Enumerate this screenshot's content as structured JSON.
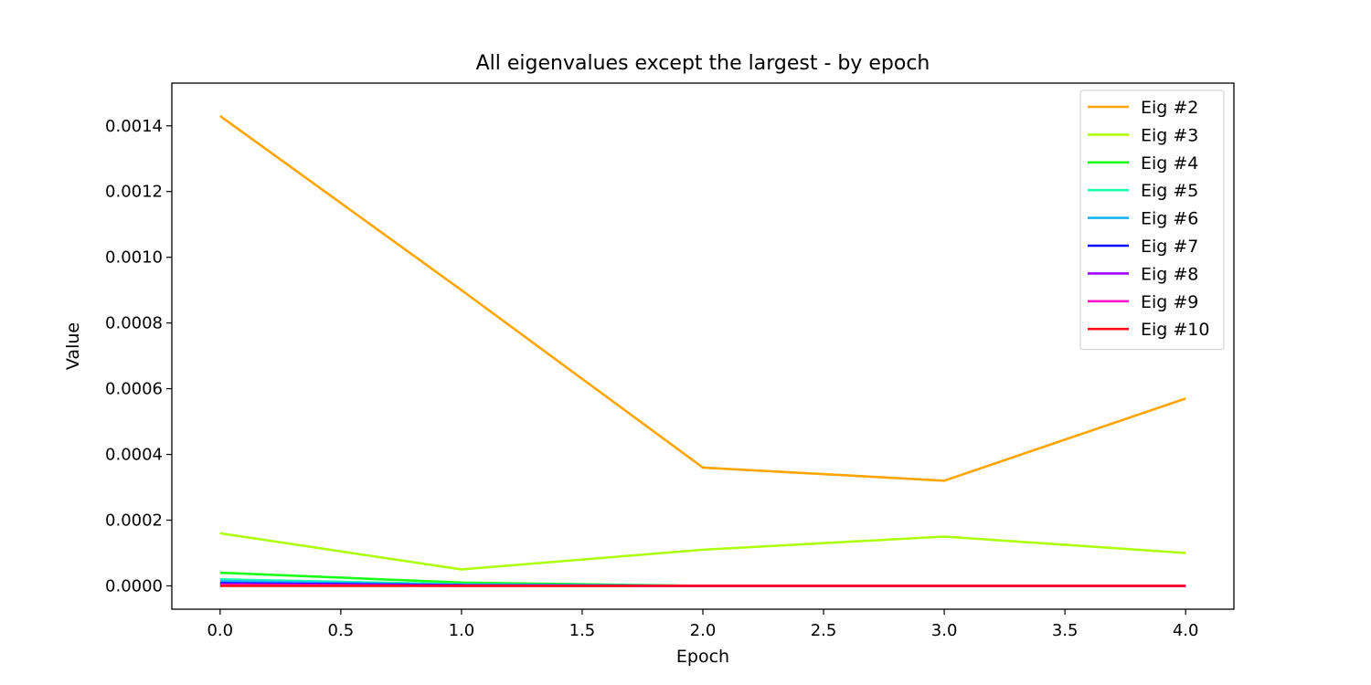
{
  "chart_data": {
    "type": "line",
    "title": "All eigenvalues except the largest - by epoch",
    "xlabel": "Epoch",
    "ylabel": "Value",
    "xlim": [
      -0.2,
      4.2
    ],
    "ylim": [
      -7.1e-05,
      0.00153
    ],
    "x_ticks": [
      "0.0",
      "0.5",
      "1.0",
      "1.5",
      "2.0",
      "2.5",
      "3.0",
      "3.5",
      "4.0"
    ],
    "x_tick_values": [
      0,
      0.5,
      1,
      1.5,
      2,
      2.5,
      3,
      3.5,
      4
    ],
    "y_ticks": [
      "0.0000",
      "0.0002",
      "0.0004",
      "0.0006",
      "0.0008",
      "0.0010",
      "0.0012",
      "0.0014"
    ],
    "y_tick_values": [
      0,
      0.0002,
      0.0004,
      0.0006,
      0.0008,
      0.001,
      0.0012,
      0.0014
    ],
    "grid": false,
    "legend_position": "top-right",
    "x": [
      0,
      1,
      2,
      3,
      4
    ],
    "series": [
      {
        "name": "Eig #2",
        "color": "#ffa500",
        "values": [
          0.00143,
          0.0009,
          0.00036,
          0.00032,
          0.00057
        ]
      },
      {
        "name": "Eig #3",
        "color": "#adff0f",
        "values": [
          0.00016,
          5e-05,
          0.00011,
          0.00015,
          0.0001
        ]
      },
      {
        "name": "Eig #4",
        "color": "#1aff1a",
        "values": [
          4e-05,
          1e-05,
          0.0,
          0.0,
          0.0
        ]
      },
      {
        "name": "Eig #5",
        "color": "#1affa8",
        "values": [
          2e-05,
          5e-06,
          0.0,
          0.0,
          0.0
        ]
      },
      {
        "name": "Eig #6",
        "color": "#19b3ff",
        "values": [
          1.5e-05,
          3e-06,
          0.0,
          0.0,
          0.0
        ]
      },
      {
        "name": "Eig #7",
        "color": "#0a00ff",
        "values": [
          8e-06,
          2e-06,
          0.0,
          0.0,
          0.0
        ]
      },
      {
        "name": "Eig #8",
        "color": "#a100ff",
        "values": [
          5e-06,
          1e-06,
          0.0,
          0.0,
          0.0
        ]
      },
      {
        "name": "Eig #9",
        "color": "#ff14cc",
        "values": [
          3e-06,
          0.0,
          0.0,
          0.0,
          0.0
        ]
      },
      {
        "name": "Eig #10",
        "color": "#ff0a1e",
        "values": [
          0.0,
          0.0,
          0.0,
          0.0,
          0.0
        ]
      }
    ]
  }
}
